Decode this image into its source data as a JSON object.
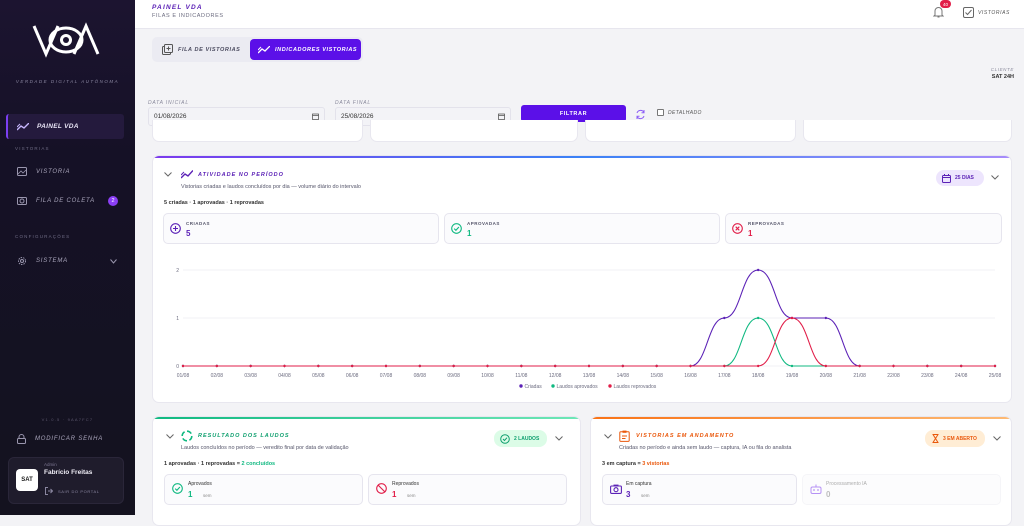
{
  "brand": {
    "logo_text": "VDA",
    "tagline": "VERDADE DIGITAL AUTÔNOMA"
  },
  "sidebar": {
    "active_item": "PAINEL VDA",
    "section_vistorias": "VISTORIAS",
    "items_vistorias": [
      {
        "label": "VISTORIA",
        "icon": "image-icon"
      },
      {
        "label": "FILA DE COLETA",
        "icon": "camera-icon",
        "badge": "2"
      }
    ],
    "section_config": "CONFIGURAÇÕES",
    "items_config": [
      {
        "label": "SISTEMA",
        "icon": "gear-icon"
      }
    ],
    "version": "V1.0.5 · 9AA7FC7",
    "change_password": "MODIFICAR SENHA",
    "user": {
      "avatar_text": "SAT",
      "role": "Admin",
      "name": "Fabrício Freitas",
      "logout": "SAIR DO PORTAL"
    }
  },
  "header": {
    "title": "PAINEL VDA",
    "subtitle": "FILAS E INDICADORES",
    "notif_count": "40",
    "vistorias_link": "VISTORIAS"
  },
  "tabs": [
    {
      "label": "FILA DE VISTORIAS",
      "active": false
    },
    {
      "label": "INDICADORES VISTORIAS",
      "active": true
    }
  ],
  "client": {
    "label": "CLIENTE",
    "value": "SAT 24H"
  },
  "filters": {
    "date_start_label": "DATA INICIAL",
    "date_start": "01/08/2026",
    "date_end_label": "DATA FINAL",
    "date_end": "25/08/2026",
    "filter_button": "FILTRAR",
    "detail_label": "DETALHADO"
  },
  "activity": {
    "title": "ATIVIDADE NO PERÍODO",
    "subtitle": "Vistorias criadas e laudos concluídos por dia — volume diário do intervalo",
    "days_badge": "25 DIAS",
    "summary": "5 criadas · 1 aprovadas · 1 reprovadas",
    "stats": [
      {
        "label": "CRIADAS",
        "value": "5",
        "color": "#5b21b6"
      },
      {
        "label": "APROVADAS",
        "value": "1",
        "color": "#10b981"
      },
      {
        "label": "REPROVADAS",
        "value": "1",
        "color": "#e11d48"
      }
    ]
  },
  "chart_data": {
    "type": "line",
    "x": [
      "01/08",
      "02/08",
      "03/08",
      "04/08",
      "05/08",
      "06/08",
      "07/08",
      "08/08",
      "09/08",
      "10/08",
      "11/08",
      "12/08",
      "13/08",
      "14/08",
      "15/08",
      "16/08",
      "17/08",
      "18/08",
      "19/08",
      "20/08",
      "21/08",
      "22/08",
      "23/08",
      "24/08",
      "25/08"
    ],
    "series": [
      {
        "name": "Criadas",
        "color": "#5b21b6",
        "values": [
          0,
          0,
          0,
          0,
          0,
          0,
          0,
          0,
          0,
          0,
          0,
          0,
          0,
          0,
          0,
          0,
          1,
          2,
          1,
          1,
          0,
          0,
          0,
          0,
          0
        ]
      },
      {
        "name": "Laudos aprovados",
        "color": "#10b981",
        "values": [
          0,
          0,
          0,
          0,
          0,
          0,
          0,
          0,
          0,
          0,
          0,
          0,
          0,
          0,
          0,
          0,
          0,
          1,
          0,
          0,
          0,
          0,
          0,
          0,
          0
        ]
      },
      {
        "name": "Laudos reprovados",
        "color": "#e11d48",
        "values": [
          0,
          0,
          0,
          0,
          0,
          0,
          0,
          0,
          0,
          0,
          0,
          0,
          0,
          0,
          0,
          0,
          0,
          0,
          1,
          0,
          0,
          0,
          0,
          0,
          0
        ]
      }
    ],
    "yticks": [
      "0",
      "1",
      "2"
    ],
    "ylim": [
      0,
      2
    ],
    "grid": true,
    "legend": "bottom"
  },
  "laudos": {
    "title": "RESULTADO DOS LAUDOS",
    "subtitle": "Laudos concluídos no período — veredito final por data de validação",
    "badge": "2 LAUDOS",
    "summary_a": "1 aprovadas · 1 reprovadas = ",
    "summary_b": "2 concluídos",
    "aprovados_label": "Aprovados",
    "aprovados_value": "1",
    "aprovados_unit": "sem",
    "reprovados_label": "Reprovados",
    "reprovados_value": "1",
    "reprovados_unit": "sem"
  },
  "andamento": {
    "title": "VISTORIAS EM ANDAMENTO",
    "subtitle": "Criadas no período e ainda sem laudo — captura, IA ou fila do analista",
    "badge": "3 EM ABERTO",
    "summary_a": "3 em captura = ",
    "summary_b": "3 vistorias",
    "captura_label": "Em captura",
    "captura_value": "3",
    "captura_unit": "sem",
    "ia_label": "Processamento IA",
    "ia_value": "0"
  }
}
